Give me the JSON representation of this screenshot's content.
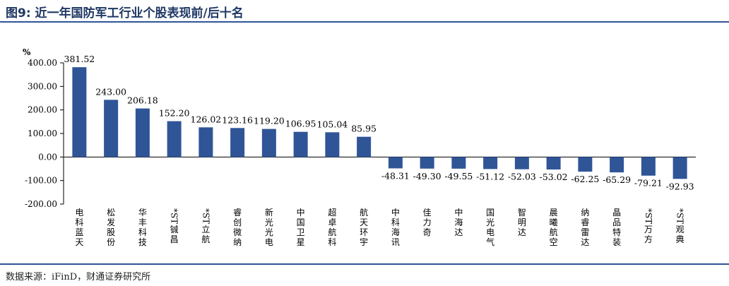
{
  "figure": {
    "title": "图9: 近一年国防军工行业个股表现前/后十名",
    "source": "数据来源：iFinD，财通证券研究所"
  },
  "chart_data": {
    "type": "bar",
    "ylabel": "%",
    "ylim": [
      -200,
      400
    ],
    "yticks": [
      "400.00",
      "300.00",
      "200.00",
      "100.00",
      "0.00",
      "-100.00",
      "-200.00"
    ],
    "ytick_values": [
      400,
      300,
      200,
      100,
      0,
      -100,
      -200
    ],
    "grid": false,
    "bar_color": "#2f5597",
    "categories": [
      "电科蓝天",
      "松发股份",
      "华丰科技",
      "*ST铖昌",
      "*ST立航",
      "睿创微纳",
      "新光光电",
      "中国卫星",
      "超卓航科",
      "航天环宇",
      "中科海讯",
      "佳力奇",
      "中海达",
      "国光电气",
      "智明达",
      "晨曦航空",
      "纳睿雷达",
      "晶品特装",
      "*ST万方",
      "*ST观典"
    ],
    "values": [
      381.52,
      243.0,
      206.18,
      152.2,
      126.02,
      123.16,
      119.2,
      106.95,
      105.04,
      85.95,
      -48.31,
      -49.3,
      -49.55,
      -51.12,
      -52.03,
      -53.02,
      -62.25,
      -65.29,
      -79.21,
      -92.93
    ],
    "data_labels": [
      "381.52",
      "243.00",
      "206.18",
      "152.20",
      "126.02",
      "123.16",
      "119.20",
      "106.95",
      "105.04",
      "85.95",
      "-48.31",
      "-49.30",
      "-49.55",
      "-51.12",
      "-52.03",
      "-53.02",
      "-62.25",
      "-65.29",
      "-79.21",
      "-92.93"
    ]
  }
}
